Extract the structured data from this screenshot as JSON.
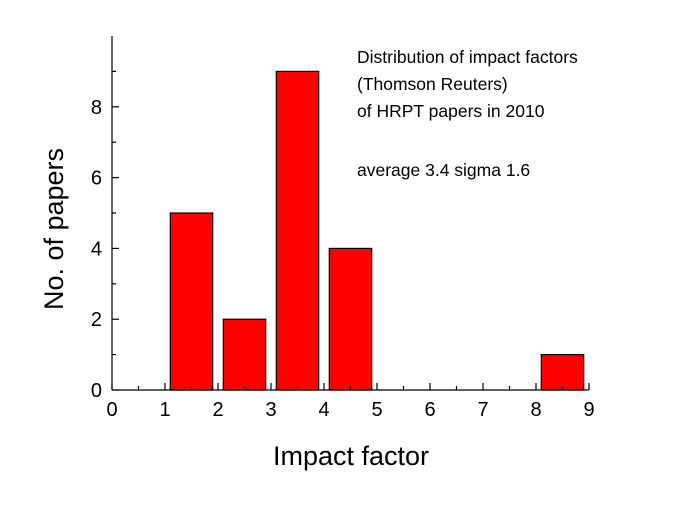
{
  "chart_data": {
    "type": "bar",
    "title": "",
    "xlabel": "Impact factor",
    "ylabel": "No. of papers",
    "xlim": [
      0,
      9
    ],
    "ylim": [
      0,
      10
    ],
    "x_ticks": [
      "0",
      "1",
      "2",
      "3",
      "4",
      "5",
      "6",
      "7",
      "8",
      "9"
    ],
    "y_ticks": [
      "0",
      "2",
      "4",
      "6",
      "8"
    ],
    "grid": false,
    "legend": "none",
    "bar_color": "#ff0000",
    "bars": [
      {
        "x0": 1.1,
        "x1": 1.9,
        "value": 5
      },
      {
        "x0": 2.1,
        "x1": 2.9,
        "value": 2
      },
      {
        "x0": 3.1,
        "x1": 3.9,
        "value": 9
      },
      {
        "x0": 4.1,
        "x1": 4.9,
        "value": 4
      },
      {
        "x0": 8.1,
        "x1": 8.9,
        "value": 1
      }
    ],
    "annotations": [
      "Distribution of impact factors",
      "(Thomson Reuters)",
      "of HRPT papers in 2010",
      "average 3.4 sigma 1.6"
    ]
  }
}
